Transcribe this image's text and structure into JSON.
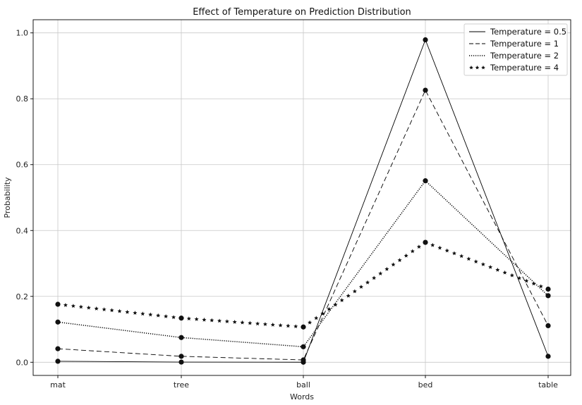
{
  "chart_data": {
    "type": "line",
    "title": "Effect of Temperature on Prediction Distribution",
    "xlabel": "Words",
    "ylabel": "Probability",
    "categories": [
      "mat",
      "tree",
      "ball",
      "bed",
      "table"
    ],
    "ylim": [
      -0.04,
      1.04
    ],
    "yticks": [
      "0.0",
      "0.2",
      "0.4",
      "0.6",
      "0.8",
      "1.0"
    ],
    "grid": true,
    "legend_position": "top-right",
    "series": [
      {
        "name": "Temperature = 0.5",
        "style": "solid",
        "values": [
          0.003,
          0.0005,
          0.0001,
          0.979,
          0.018
        ]
      },
      {
        "name": "Temperature = 1",
        "style": "dashed",
        "values": [
          0.041,
          0.018,
          0.007,
          0.826,
          0.111
        ]
      },
      {
        "name": "Temperature = 2",
        "style": "dotted",
        "values": [
          0.122,
          0.075,
          0.047,
          0.551,
          0.202
        ]
      },
      {
        "name": "Temperature = 4",
        "style": "stars",
        "values": [
          0.176,
          0.134,
          0.107,
          0.364,
          0.222
        ]
      }
    ],
    "colors": {
      "line": "#000000",
      "marker": "#111111",
      "grid": "#c8c8c8"
    }
  }
}
